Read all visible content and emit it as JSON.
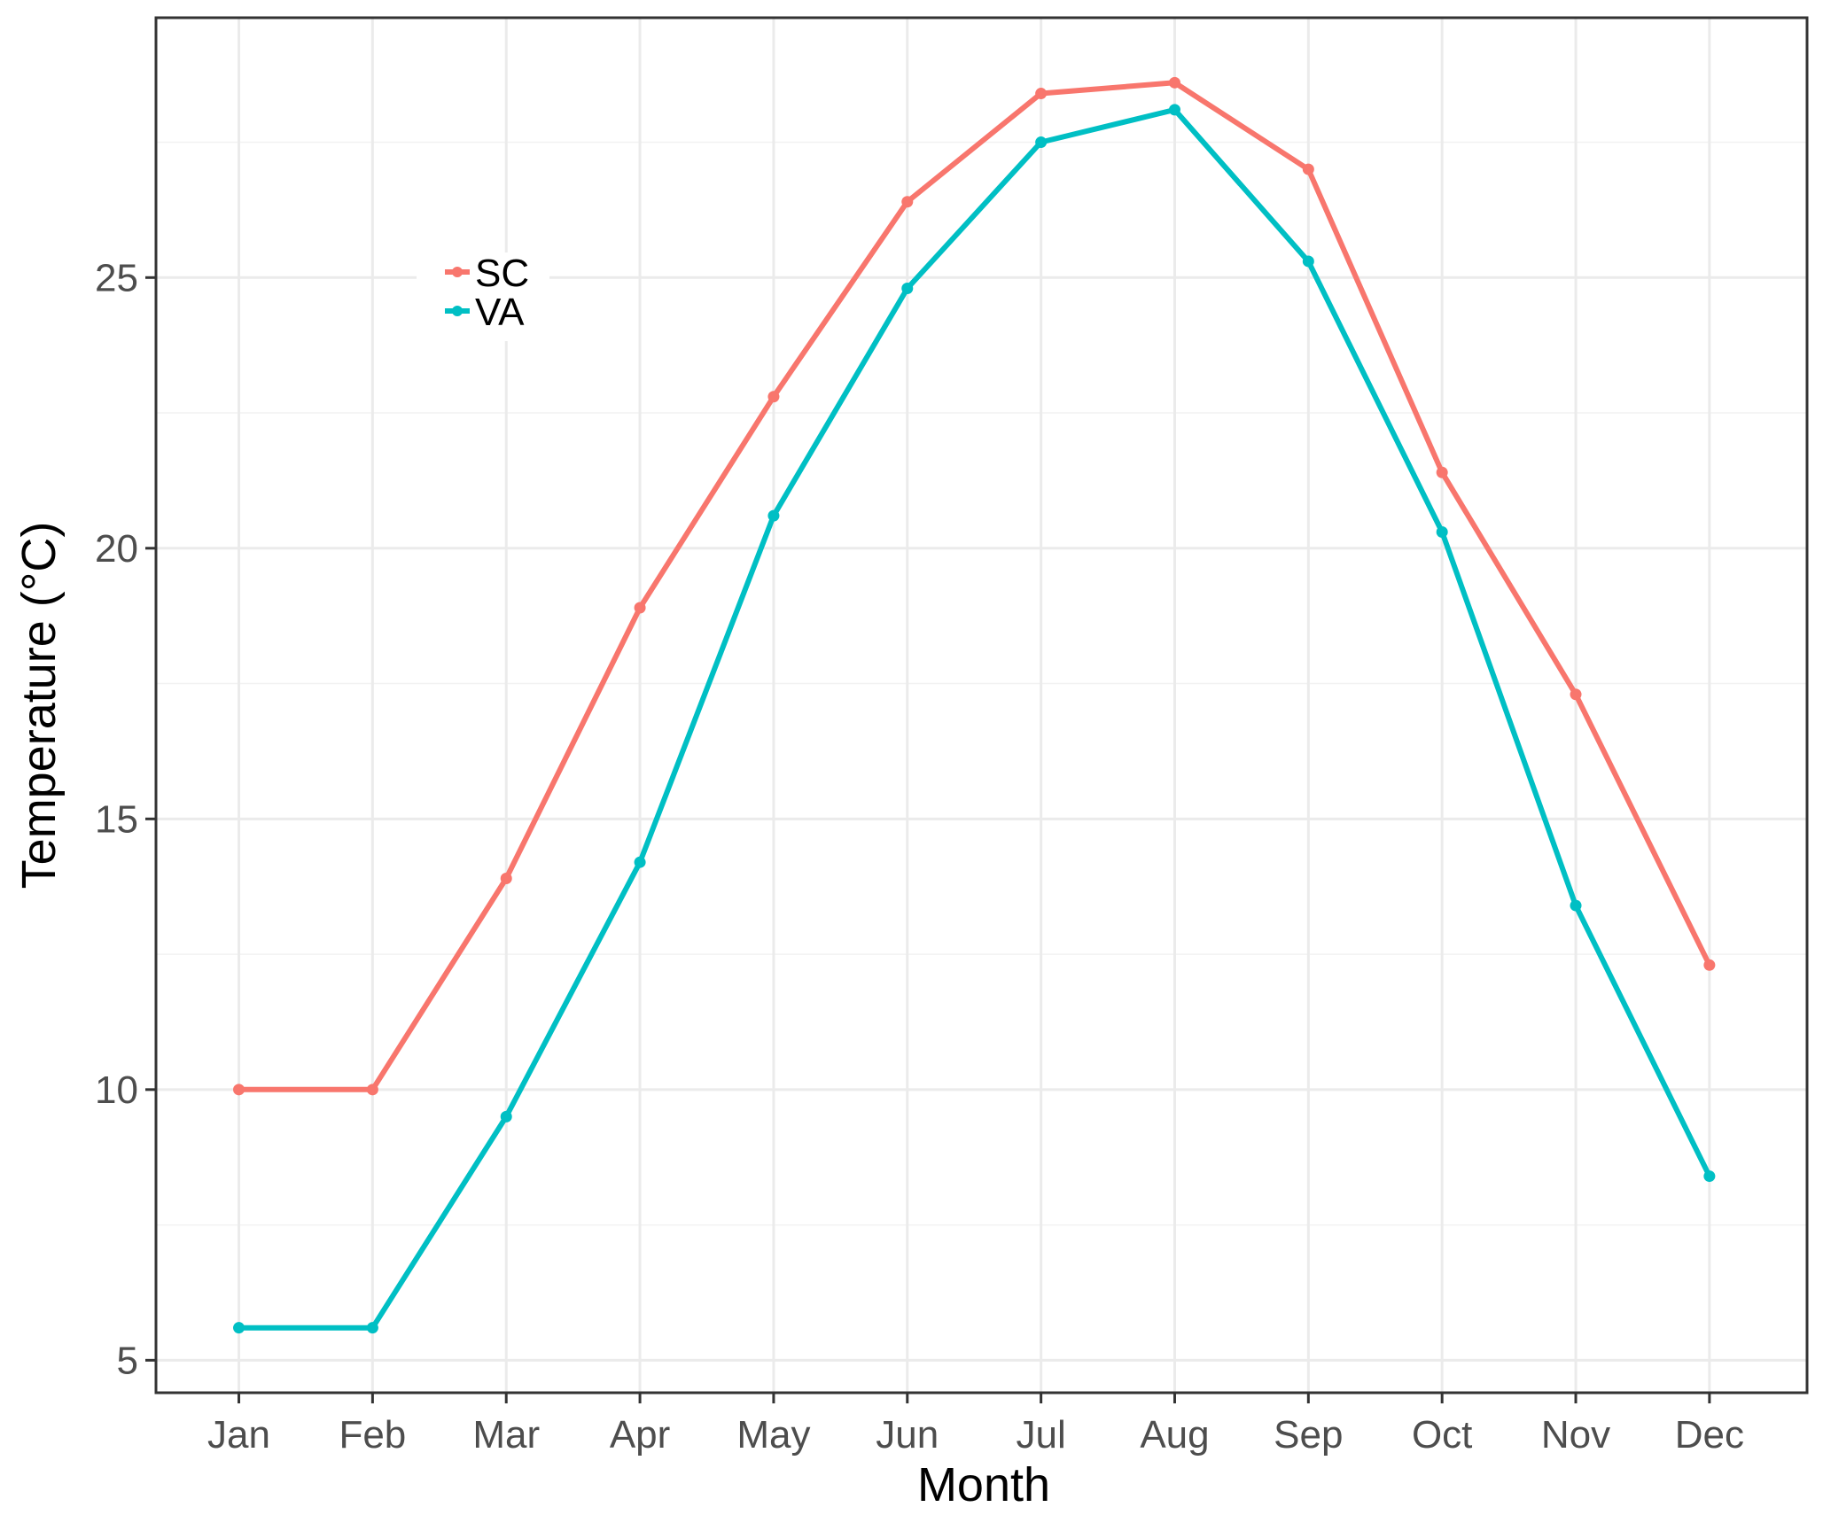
{
  "chart_data": {
    "type": "line",
    "x_label": "Month",
    "y_label": "Temperature (°C)",
    "categories": [
      "Jan",
      "Feb",
      "Mar",
      "Apr",
      "May",
      "Jun",
      "Jul",
      "Aug",
      "Sep",
      "Oct",
      "Nov",
      "Dec"
    ],
    "y_ticks": [
      5,
      10,
      15,
      20,
      25
    ],
    "ylim": [
      4.4,
      29.8
    ],
    "grid": true,
    "legend_position": "top-left",
    "series": [
      {
        "name": "SC",
        "color": "#F8766D",
        "values": [
          10.0,
          10.0,
          13.9,
          18.9,
          22.8,
          26.4,
          28.4,
          28.6,
          27.0,
          21.4,
          17.3,
          12.3
        ]
      },
      {
        "name": "VA",
        "color": "#00BFC4",
        "values": [
          5.6,
          5.6,
          9.5,
          14.2,
          20.6,
          24.8,
          27.5,
          28.1,
          25.3,
          20.3,
          13.4,
          8.4
        ]
      }
    ]
  }
}
